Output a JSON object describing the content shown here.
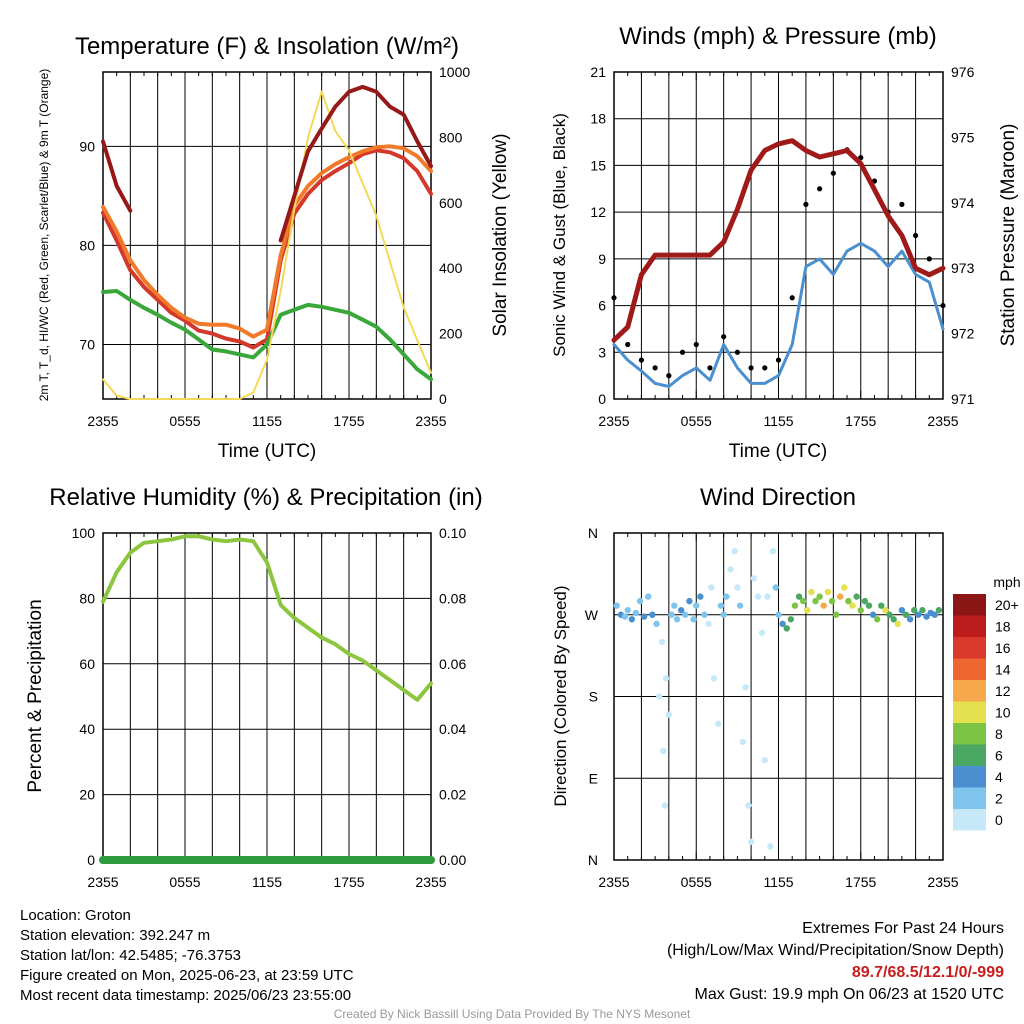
{
  "footer": {
    "location": "Location: Groton",
    "elevation": "Station elevation: 392.247 m",
    "latlon": "Station lat/lon: 42.5485; -76.3753",
    "created": "Figure created on Mon, 2025-06-23, at 23:59 UTC",
    "recent": "Most recent data timestamp: 2025/06/23 23:55:00",
    "extremes_title": "Extremes For Past 24 Hours",
    "extremes_legend": "(High/Low/Max Wind/Precipitation/Snow Depth)",
    "extremes_values": "89.7/68.5/12.1/0/-999",
    "max_gust": "Max Gust: 19.9 mph On 06/23 at 1520 UTC",
    "credit": "Created By Nick Bassill Using Data Provided By The NYS Mesonet"
  },
  "chart_data": [
    {
      "type": "line",
      "title": "Temperature (F) & Insolation (W/m²)",
      "xlabel": "Time (UTC)",
      "ylabel": "2m T, T_d, HI/WC (Red, Green, Scarlet/Blue) & 9m T (Orange)",
      "y2label": "Solar Insolation (Yellow)",
      "xticks": [
        "2355",
        "0555",
        "1155",
        "1755",
        "2355"
      ],
      "x": [
        0,
        1,
        2,
        3,
        4,
        5,
        6,
        7,
        8,
        9,
        10,
        11,
        12,
        13,
        14,
        15,
        16,
        17,
        18,
        19,
        20,
        21,
        22,
        23,
        24
      ],
      "ylim": [
        64.5,
        97.5
      ],
      "yticks": [
        70,
        80,
        90
      ],
      "y2lim": [
        0,
        1000
      ],
      "y2ticks": [
        0,
        200,
        400,
        600,
        800,
        1000
      ],
      "series": [
        {
          "color": "#d3382a",
          "axis": "left",
          "values": [
            83.3,
            80.5,
            77.5,
            75.8,
            74.5,
            73.2,
            72.4,
            71.4,
            71.1,
            70.6,
            70.3,
            69.7,
            70.5,
            78.5,
            83.2,
            85.2,
            86.6,
            87.5,
            88.3,
            89.2,
            89.6,
            89.4,
            88.8,
            87.5,
            85.2
          ]
        },
        {
          "color": "#f07a2a",
          "axis": "left",
          "values": [
            83.9,
            81.4,
            78.5,
            76.5,
            75.0,
            73.7,
            72.7,
            72.1,
            72.0,
            72.0,
            71.6,
            70.8,
            71.5,
            79.0,
            84.0,
            86.0,
            87.3,
            88.2,
            88.9,
            89.5,
            89.9,
            90.0,
            89.8,
            89.0,
            87.5
          ]
        },
        {
          "color": "#3aa73a",
          "axis": "left",
          "values": [
            75.3,
            75.4,
            74.5,
            73.7,
            73.0,
            72.2,
            71.5,
            70.5,
            69.5,
            69.3,
            69.0,
            68.7,
            70.0,
            73.0,
            73.5,
            74.0,
            73.8,
            73.5,
            73.2,
            72.5,
            71.8,
            70.5,
            69.0,
            67.5,
            66.5
          ]
        },
        {
          "color": "#f1da58",
          "axis": "right",
          "values": [
            60,
            10,
            0,
            0,
            0,
            0,
            0,
            0,
            0,
            0,
            0,
            20,
            120,
            330,
            580,
            800,
            940,
            820,
            760,
            660,
            560,
            420,
            280,
            180,
            80
          ]
        },
        {
          "color": "#961818",
          "axis": "left",
          "values": [
            90.5,
            86.0,
            83.5,
            null,
            null,
            null,
            null,
            null,
            null,
            null,
            null,
            null,
            null,
            80.5,
            85.0,
            89.5,
            91.8,
            94.0,
            95.5,
            96.0,
            95.5,
            94.0,
            93.2,
            90.5,
            88.0
          ]
        }
      ]
    },
    {
      "type": "line",
      "title": "Winds (mph) & Pressure (mb)",
      "xlabel": "Time (UTC)",
      "ylabel": "Sonic Wind & Gust (Blue, Black)",
      "y2label": "Station Pressure (Maroon)",
      "xticks": [
        "2355",
        "0555",
        "1155",
        "1755",
        "2355"
      ],
      "x": [
        0,
        1,
        2,
        3,
        4,
        5,
        6,
        7,
        8,
        9,
        10,
        11,
        12,
        13,
        14,
        15,
        16,
        17,
        18,
        19,
        20,
        21,
        22,
        23,
        24
      ],
      "ylim": [
        0,
        21
      ],
      "yticks": [
        0,
        3,
        6,
        9,
        12,
        15,
        18,
        21
      ],
      "y2lim": [
        971,
        976
      ],
      "y2ticks": [
        971,
        972,
        973,
        974,
        975,
        976
      ],
      "series": [
        {
          "name": "",
          "color": "#4a8fd0",
          "axis": "left",
          "values": [
            3.5,
            2.5,
            1.8,
            1.0,
            0.8,
            1.5,
            2.0,
            1.2,
            3.5,
            2.0,
            1.0,
            1.0,
            1.5,
            3.5,
            8.5,
            9.0,
            8.0,
            9.5,
            10.0,
            9.5,
            8.5,
            9.5,
            8.0,
            7.5,
            4.5
          ]
        },
        {
          "name": "",
          "color": "#000000",
          "axis": "left",
          "values": [
            6.5,
            3.5,
            2.5,
            2.0,
            1.5,
            3.0,
            3.5,
            2.0,
            4.0,
            3.0,
            2.0,
            2.0,
            2.5,
            6.5,
            12.5,
            13.5,
            14.5,
            16.0,
            15.5,
            14.0,
            12.0,
            12.5,
            10.5,
            9.0,
            6.0
          ]
        },
        {
          "name": "",
          "color": "#a11a1a",
          "axis": "right",
          "values": [
            971.9,
            972.1,
            972.9,
            973.2,
            973.2,
            973.2,
            973.2,
            973.2,
            973.4,
            973.9,
            974.5,
            974.8,
            974.9,
            974.95,
            974.8,
            974.7,
            974.75,
            974.8,
            974.6,
            974.2,
            973.8,
            973.5,
            973.0,
            972.9,
            973.0
          ]
        }
      ]
    },
    {
      "type": "line",
      "title": "Relative Humidity (%) & Precipitation (in)",
      "xlabel": "",
      "ylabel": "Percent & Precipitation",
      "xticks": [
        "2355",
        "0555",
        "1155",
        "1755",
        "2355"
      ],
      "x": [
        0,
        1,
        2,
        3,
        4,
        5,
        6,
        7,
        8,
        9,
        10,
        11,
        12,
        13,
        14,
        15,
        16,
        17,
        18,
        19,
        20,
        21,
        22,
        23,
        24
      ],
      "ylim": [
        0,
        100
      ],
      "yticks": [
        0,
        20,
        40,
        60,
        80,
        100
      ],
      "y2lim": [
        0,
        0.1
      ],
      "y2ticks": [
        "0.00",
        "0.02",
        "0.04",
        "0.06",
        "0.08",
        "0.10"
      ],
      "series": [
        {
          "name": "",
          "color": "#8cc63f",
          "axis": "left",
          "values": [
            79,
            88,
            94,
            97,
            97.5,
            98,
            99,
            99,
            98,
            97.5,
            98,
            97.5,
            91,
            78,
            74,
            71,
            68,
            66,
            63,
            61,
            58,
            55,
            52,
            49,
            54
          ]
        },
        {
          "name": "",
          "color": "#2f9b3f",
          "axis": "right",
          "values": [
            0,
            0,
            0,
            0,
            0,
            0,
            0,
            0,
            0,
            0,
            0,
            0,
            0,
            0,
            0,
            0,
            0,
            0,
            0,
            0,
            0,
            0,
            0,
            0,
            0
          ]
        }
      ]
    },
    {
      "type": "scatter",
      "title": "Wind Direction",
      "xlabel": "",
      "ylabel": "Direction (Colored By Speed)",
      "xticks": [
        "2355",
        "0555",
        "1155",
        "1755",
        "2355"
      ],
      "yticks": [
        "N",
        "E",
        "S",
        "W",
        "N"
      ],
      "ylim": [
        0,
        360
      ],
      "colorbar": {
        "title": "mph",
        "labels": [
          "0",
          "2",
          "4",
          "6",
          "8",
          "10",
          "12",
          "14",
          "16",
          "18",
          "20+"
        ],
        "colors": [
          "#c6e9fa",
          "#7fc4ec",
          "#4a8fd0",
          "#4aa764",
          "#7cc443",
          "#e4e04e",
          "#f5a94a",
          "#ee6530",
          "#d9382c",
          "#bb1c1c",
          "#8c1515"
        ]
      },
      "points": [
        [
          0.2,
          280,
          3
        ],
        [
          0.5,
          270,
          4
        ],
        [
          0.8,
          268,
          3
        ],
        [
          1.0,
          275,
          2
        ],
        [
          1.3,
          265,
          4
        ],
        [
          1.6,
          272,
          3
        ],
        [
          1.9,
          285,
          3
        ],
        [
          2.2,
          268,
          4
        ],
        [
          2.5,
          290,
          3
        ],
        [
          2.8,
          270,
          4
        ],
        [
          3.1,
          260,
          2
        ],
        [
          3.3,
          180,
          1
        ],
        [
          3.5,
          240,
          1
        ],
        [
          3.6,
          120,
          1
        ],
        [
          3.7,
          60,
          1
        ],
        [
          3.8,
          200,
          1
        ],
        [
          4.0,
          160,
          1
        ],
        [
          4.2,
          270,
          2
        ],
        [
          4.4,
          280,
          3
        ],
        [
          4.6,
          265,
          3
        ],
        [
          4.9,
          275,
          4
        ],
        [
          5.2,
          270,
          3
        ],
        [
          5.5,
          285,
          4
        ],
        [
          5.8,
          265,
          2
        ],
        [
          6.0,
          280,
          3
        ],
        [
          6.3,
          290,
          4
        ],
        [
          6.6,
          270,
          3
        ],
        [
          6.9,
          260,
          1
        ],
        [
          7.1,
          300,
          1
        ],
        [
          7.3,
          200,
          1
        ],
        [
          7.6,
          150,
          1
        ],
        [
          7.8,
          280,
          2
        ],
        [
          8.0,
          270,
          3
        ],
        [
          8.2,
          290,
          2
        ],
        [
          8.5,
          320,
          1
        ],
        [
          8.8,
          340,
          1
        ],
        [
          9.0,
          300,
          1
        ],
        [
          9.2,
          280,
          2
        ],
        [
          9.4,
          130,
          1
        ],
        [
          9.6,
          190,
          1
        ],
        [
          9.8,
          60,
          1
        ],
        [
          10.0,
          20,
          1
        ],
        [
          10.2,
          310,
          1
        ],
        [
          10.5,
          290,
          1
        ],
        [
          10.8,
          250,
          1
        ],
        [
          11.0,
          110,
          1
        ],
        [
          11.2,
          290,
          1
        ],
        [
          11.4,
          15,
          1
        ],
        [
          11.6,
          340,
          1
        ],
        [
          11.8,
          300,
          2
        ],
        [
          12.0,
          270,
          3
        ],
        [
          12.3,
          260,
          4
        ],
        [
          12.6,
          255,
          6
        ],
        [
          12.9,
          265,
          7
        ],
        [
          13.2,
          280,
          8
        ],
        [
          13.5,
          290,
          7
        ],
        [
          13.8,
          285,
          9
        ],
        [
          14.1,
          275,
          10
        ],
        [
          14.4,
          295,
          11
        ],
        [
          14.7,
          285,
          8
        ],
        [
          15.0,
          290,
          9
        ],
        [
          15.3,
          280,
          12
        ],
        [
          15.6,
          295,
          10
        ],
        [
          15.9,
          285,
          8
        ],
        [
          16.2,
          270,
          9
        ],
        [
          16.5,
          290,
          13
        ],
        [
          16.8,
          300,
          10
        ],
        [
          17.1,
          285,
          9
        ],
        [
          17.4,
          280,
          11
        ],
        [
          17.7,
          290,
          7
        ],
        [
          18.0,
          275,
          8
        ],
        [
          18.3,
          285,
          6
        ],
        [
          18.6,
          280,
          7
        ],
        [
          18.9,
          270,
          5
        ],
        [
          19.2,
          265,
          8
        ],
        [
          19.5,
          280,
          6
        ],
        [
          19.8,
          275,
          10
        ],
        [
          20.1,
          270,
          6
        ],
        [
          20.4,
          265,
          7
        ],
        [
          20.7,
          260,
          10
        ],
        [
          21.0,
          275,
          5
        ],
        [
          21.3,
          270,
          6
        ],
        [
          21.6,
          265,
          5
        ],
        [
          21.9,
          275,
          7
        ],
        [
          22.2,
          270,
          4
        ],
        [
          22.5,
          275,
          6
        ],
        [
          22.8,
          268,
          5
        ],
        [
          23.1,
          272,
          4
        ],
        [
          23.4,
          270,
          5
        ],
        [
          23.7,
          275,
          6
        ]
      ]
    }
  ]
}
